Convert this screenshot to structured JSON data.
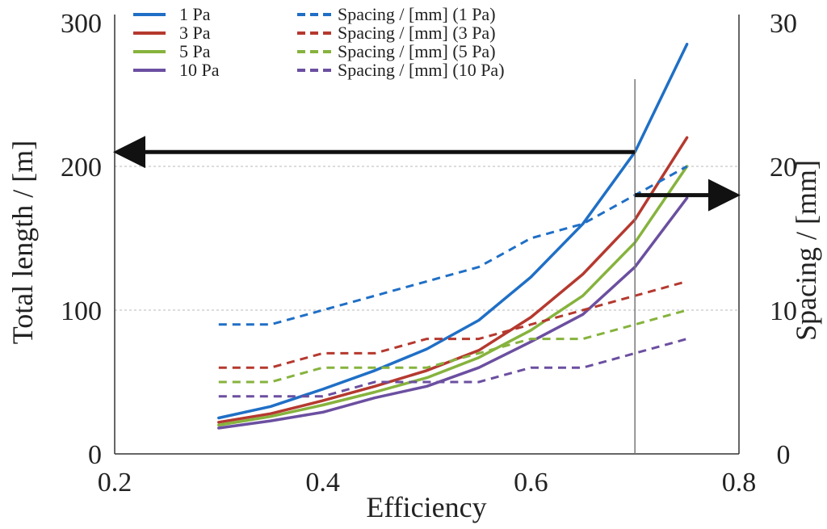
{
  "chart_data": {
    "type": "line",
    "title": "",
    "xlabel": "Efficiency",
    "ylabel_left": "Total length / [m]",
    "ylabel_right": "Spacing / [mm]",
    "xlim": [
      0.2,
      0.8
    ],
    "ylim_left": [
      0,
      300
    ],
    "ylim_right": [
      0,
      30
    ],
    "x_ticks": [
      "0.2",
      "0.4",
      "0.6",
      "0.8"
    ],
    "y_left_ticks": [
      "0",
      "100",
      "200",
      "300"
    ],
    "y_right_ticks": [
      "0",
      "10",
      "20",
      "30"
    ],
    "grid": "horizontal dotted at 100 and 200",
    "legend_position": "top",
    "x": [
      0.3,
      0.35,
      0.4,
      0.45,
      0.5,
      0.55,
      0.6,
      0.65,
      0.7,
      0.75
    ],
    "series": [
      {
        "name": "1 Pa",
        "axis": "left",
        "dashed": false,
        "color": "#1f6fc6",
        "values": [
          25,
          33,
          45,
          58,
          73,
          93,
          123,
          160,
          210,
          285
        ]
      },
      {
        "name": "3 Pa",
        "axis": "left",
        "dashed": false,
        "color": "#b5392f",
        "values": [
          22,
          28,
          37,
          47,
          58,
          72,
          95,
          125,
          163,
          220
        ]
      },
      {
        "name": "5 Pa",
        "axis": "left",
        "dashed": false,
        "color": "#86b33d",
        "values": [
          20,
          26,
          34,
          43,
          53,
          67,
          86,
          110,
          147,
          200
        ]
      },
      {
        "name": "10 Pa",
        "axis": "left",
        "dashed": false,
        "color": "#6b4fa0",
        "values": [
          18,
          23,
          29,
          39,
          47,
          60,
          78,
          97,
          130,
          178
        ]
      },
      {
        "name": "Spacing / [mm] (1 Pa)",
        "axis": "right",
        "dashed": true,
        "color": "#1f6fc6",
        "values": [
          9,
          9,
          10,
          11,
          12,
          13,
          15,
          16,
          18,
          20
        ]
      },
      {
        "name": "Spacing / [mm] (3 Pa)",
        "axis": "right",
        "dashed": true,
        "color": "#b5392f",
        "values": [
          6,
          6,
          7,
          7,
          8,
          8,
          9,
          10,
          11,
          12
        ]
      },
      {
        "name": "Spacing / [mm] (5 Pa)",
        "axis": "right",
        "dashed": true,
        "color": "#86b33d",
        "values": [
          5,
          5,
          6,
          6,
          6,
          7,
          8,
          8,
          9,
          10
        ]
      },
      {
        "name": "Spacing / [mm] (10 Pa)",
        "axis": "right",
        "dashed": true,
        "color": "#6b4fa0",
        "values": [
          4,
          4,
          4,
          5,
          5,
          5,
          6,
          6,
          7,
          8
        ]
      }
    ],
    "annotations": [
      {
        "type": "vertical-line",
        "x": 0.7
      },
      {
        "type": "arrow",
        "direction": "left",
        "points_to_axis": "left",
        "at_y": 210
      },
      {
        "type": "arrow",
        "direction": "right",
        "points_to_axis": "right",
        "at_y": 18
      }
    ]
  }
}
